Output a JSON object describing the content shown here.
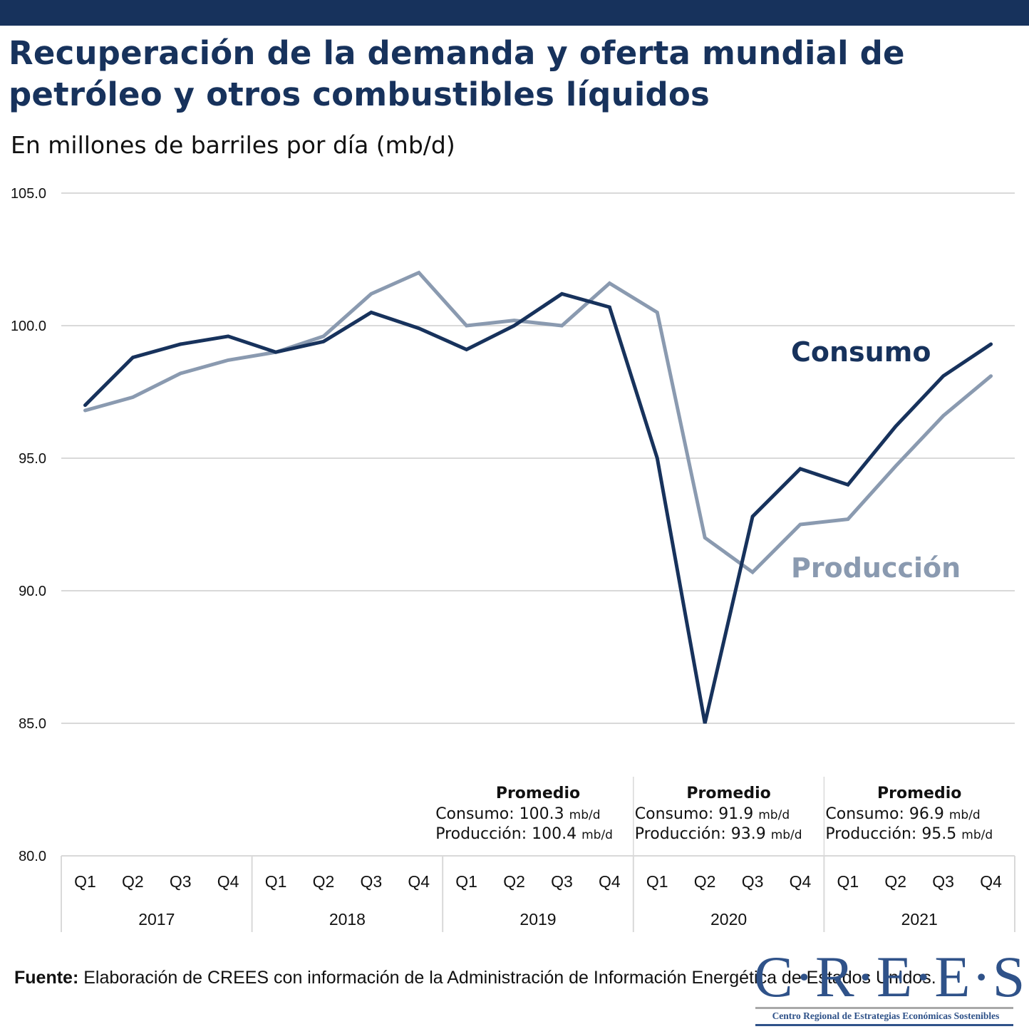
{
  "header": {
    "title": "Recuperación de la demanda y oferta mundial de petróleo y otros combustibles líquidos",
    "subtitle": "En millones de barriles por día (mb/d)",
    "bar_color": "#17325c"
  },
  "chart_data": {
    "type": "line",
    "title": "Recuperación de la demanda y oferta mundial de petróleo y otros combustibles líquidos",
    "subtitle": "En millones de barriles por día (mb/d)",
    "xlabel": "",
    "ylabel": "",
    "ylim": [
      80,
      105
    ],
    "yticks": [
      80,
      85,
      90,
      95,
      100,
      105
    ],
    "ytick_labels": [
      "80.0",
      "85.0",
      "90.0",
      "95.0",
      "100.0",
      "105.0"
    ],
    "grid": true,
    "x_groups": [
      {
        "year": "2017",
        "quarters": [
          "Q1",
          "Q2",
          "Q3",
          "Q4"
        ]
      },
      {
        "year": "2018",
        "quarters": [
          "Q1",
          "Q2",
          "Q3",
          "Q4"
        ]
      },
      {
        "year": "2019",
        "quarters": [
          "Q1",
          "Q2",
          "Q3",
          "Q4"
        ]
      },
      {
        "year": "2020",
        "quarters": [
          "Q1",
          "Q2",
          "Q3",
          "Q4"
        ]
      },
      {
        "year": "2021",
        "quarters": [
          "Q1",
          "Q2",
          "Q3",
          "Q4"
        ]
      }
    ],
    "series": [
      {
        "name": "Consumo",
        "color": "#17325c",
        "label_position": "right-upper",
        "values": [
          97.0,
          98.8,
          99.3,
          99.6,
          99.0,
          99.4,
          100.5,
          99.9,
          99.1,
          100.0,
          101.2,
          100.7,
          95.0,
          85.0,
          92.8,
          94.6,
          94.0,
          96.2,
          98.1,
          99.3
        ]
      },
      {
        "name": "Producción",
        "color": "#8a9ab0",
        "label_position": "right-lower",
        "values": [
          96.8,
          97.3,
          98.2,
          98.7,
          99.0,
          99.6,
          101.2,
          102.0,
          100.0,
          100.2,
          100.0,
          101.6,
          100.5,
          92.0,
          90.7,
          92.5,
          92.7,
          94.7,
          96.6,
          98.1
        ]
      }
    ],
    "annotations": [
      {
        "year": "2019",
        "heading": "Promedio",
        "lines": [
          {
            "label": "Consumo: ",
            "value": "100.3",
            "unit": "mb/d"
          },
          {
            "label": "Producción: ",
            "value": "100.4",
            "unit": "mb/d"
          }
        ]
      },
      {
        "year": "2020",
        "heading": "Promedio",
        "lines": [
          {
            "label": "Consumo: ",
            "value": "91.9",
            "unit": "mb/d"
          },
          {
            "label": "Producción: ",
            "value": "93.9",
            "unit": "mb/d"
          }
        ]
      },
      {
        "year": "2021",
        "heading": "Promedio",
        "lines": [
          {
            "label": "Consumo: ",
            "value": "96.9",
            "unit": "mb/d"
          },
          {
            "label": "Producción: ",
            "value": "95.5",
            "unit": "mb/d"
          }
        ]
      }
    ]
  },
  "footer": {
    "source_label": "Fuente:",
    "source_text": " Elaboración de CREES con información de la Administración de Información Energética de Estados Unidos.",
    "logo_text": "C·R·E·E·S",
    "logo_subtext": "Centro Regional de Estrategias Económicas Sostenibles"
  }
}
